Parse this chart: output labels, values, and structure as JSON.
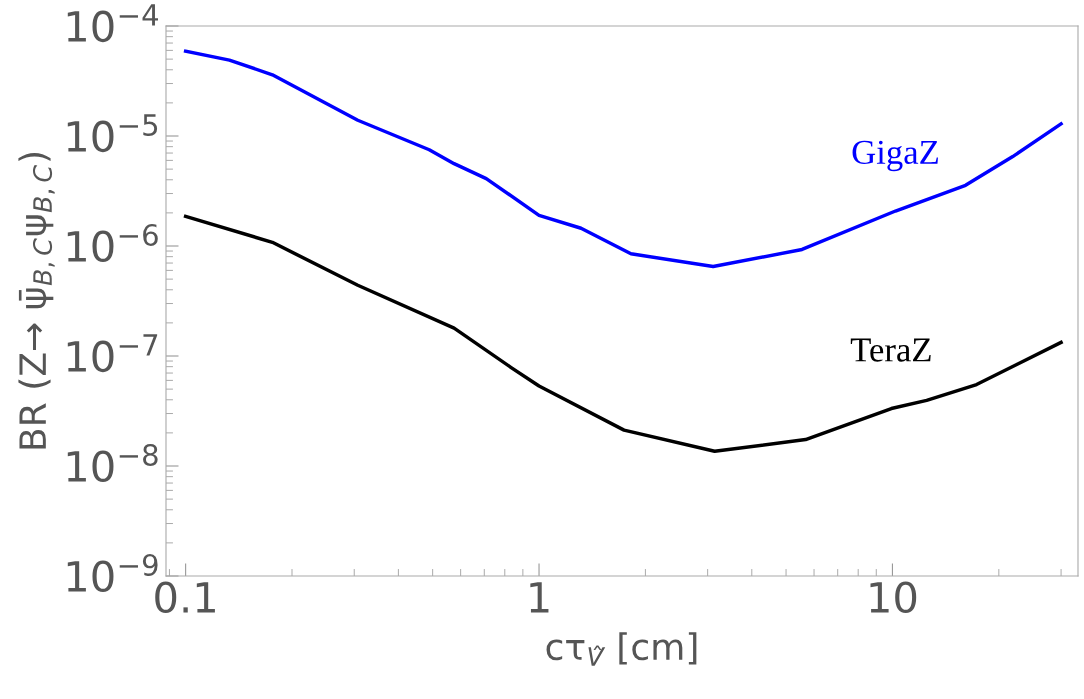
{
  "chart_data": {
    "type": "line",
    "xlabel": "cτ$_{V̂}$ [cm]",
    "ylabel": "BR (Z→ ψ̄$_{B,C}$ψ$_{B,C}$)",
    "log": "xy",
    "grid": false,
    "legend": false,
    "marker": "none",
    "line_style": "solid",
    "xlim": [
      0.088,
      33.5
    ],
    "xticks": [
      0.1,
      1,
      10
    ],
    "ylim": [
      1e-09,
      0.0001
    ],
    "yticks": [
      {
        "value": 1e-09,
        "label": "10$^{−9}$"
      },
      {
        "value": 1e-08,
        "label": "10$^{−8}$"
      },
      {
        "value": 1e-07,
        "label": "10$^{−7}$"
      },
      {
        "value": 1e-06,
        "label": "10$^{−6}$"
      },
      {
        "value": 1e-05,
        "label": "10$^{−5}$"
      },
      {
        "value": 0.0001,
        "label": "10$^{−4}$"
      }
    ],
    "series": [
      {
        "name": "GigaZ",
        "color": "#0000ff",
        "x": [
          0.1,
          0.133,
          0.176,
          0.307,
          0.489,
          0.575,
          0.709,
          1.0,
          1.315,
          1.82,
          3.11,
          5.55,
          10.2,
          16.1,
          21.9,
          30
        ],
        "values": [
          5.9e-05,
          4.9e-05,
          3.6e-05,
          1.39e-05,
          7.5e-06,
          5.6e-06,
          4.1e-06,
          1.9e-06,
          1.45e-06,
          8.5e-07,
          6.5e-07,
          9.3e-07,
          2.08e-06,
          3.56e-06,
          6.5e-06,
          1.29e-05
        ]
      },
      {
        "name": "TeraZ",
        "color": "#000000",
        "x": [
          0.1,
          0.176,
          0.307,
          0.575,
          0.834,
          1.0,
          1.74,
          3.14,
          5.68,
          9.93,
          12.5,
          17.3,
          30
        ],
        "values": [
          1.86e-06,
          1.08e-06,
          4.4e-07,
          1.79e-07,
          7.85e-08,
          5.33e-08,
          2.12e-08,
          1.36e-08,
          1.74e-08,
          3.33e-08,
          3.95e-08,
          5.5e-08,
          1.33e-07
        ]
      }
    ]
  }
}
